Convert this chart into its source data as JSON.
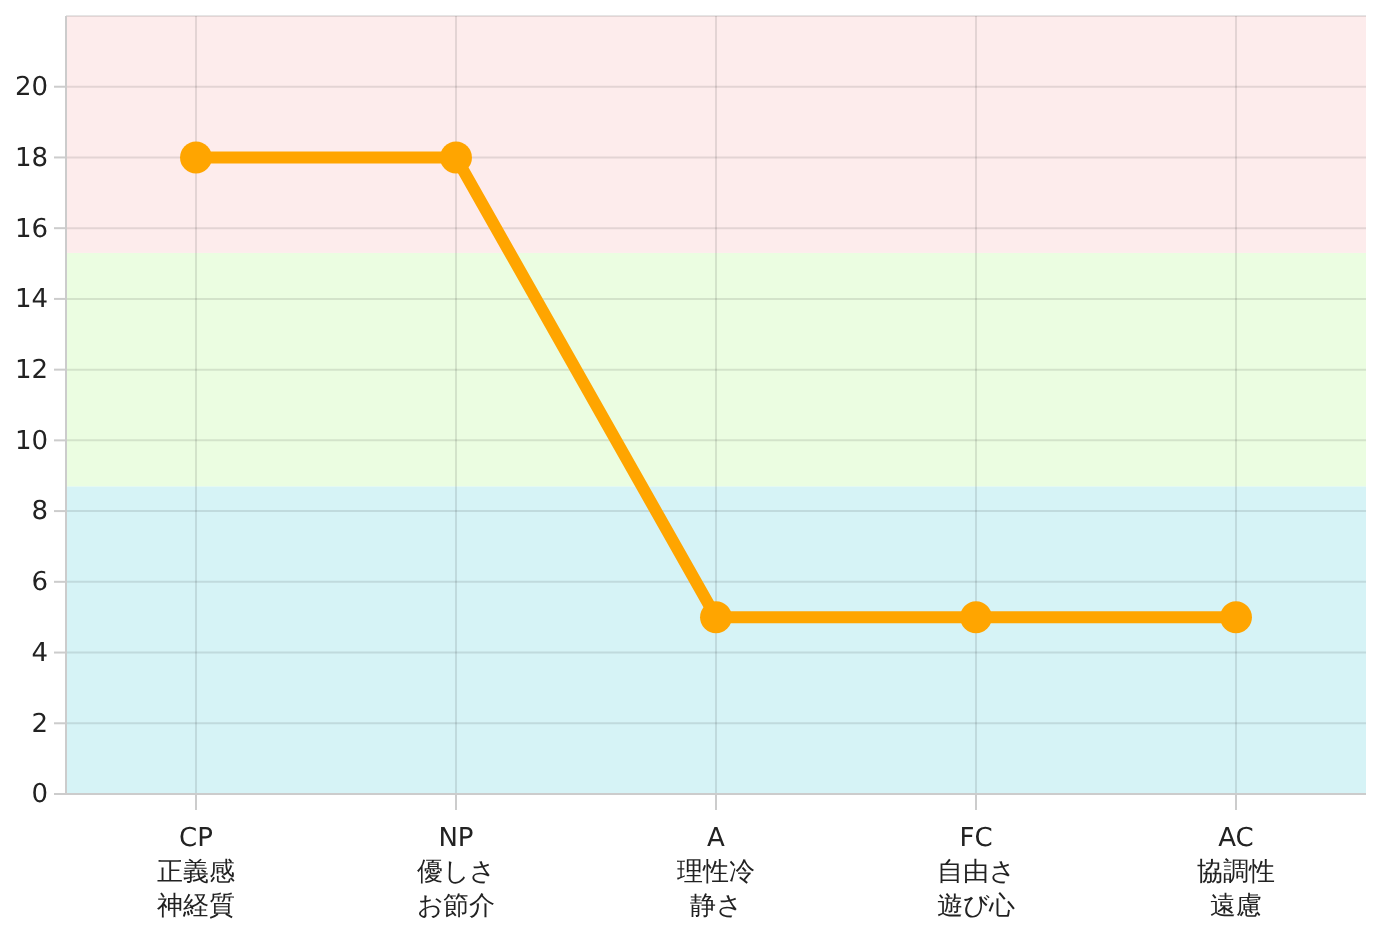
{
  "chart_data": {
    "type": "line",
    "categories": [
      "CP\n正義感神経質",
      "NP\n優しさお節介",
      "A\n理性冷静さ",
      "FC\n自由さ遊び心",
      "AC\n協調性遠慮"
    ],
    "series": [
      {
        "color": "#ffa500",
        "values": [
          18,
          18,
          5,
          5,
          5
        ]
      }
    ],
    "ylim": [
      0,
      22
    ],
    "yticks": [
      0,
      2,
      4,
      6,
      8,
      10,
      12,
      14,
      16,
      18,
      20
    ],
    "bands": [
      {
        "axis": "y",
        "from": 0,
        "to": 8.7,
        "color": "#d6f3f6"
      },
      {
        "axis": "y",
        "from": 8.7,
        "to": 15.3,
        "color": "#ebfde1"
      },
      {
        "axis": "y",
        "from": 15.3,
        "to": 22,
        "color": "#fdecec"
      }
    ],
    "grid": true,
    "marker": "circle",
    "line_style": "solid"
  }
}
